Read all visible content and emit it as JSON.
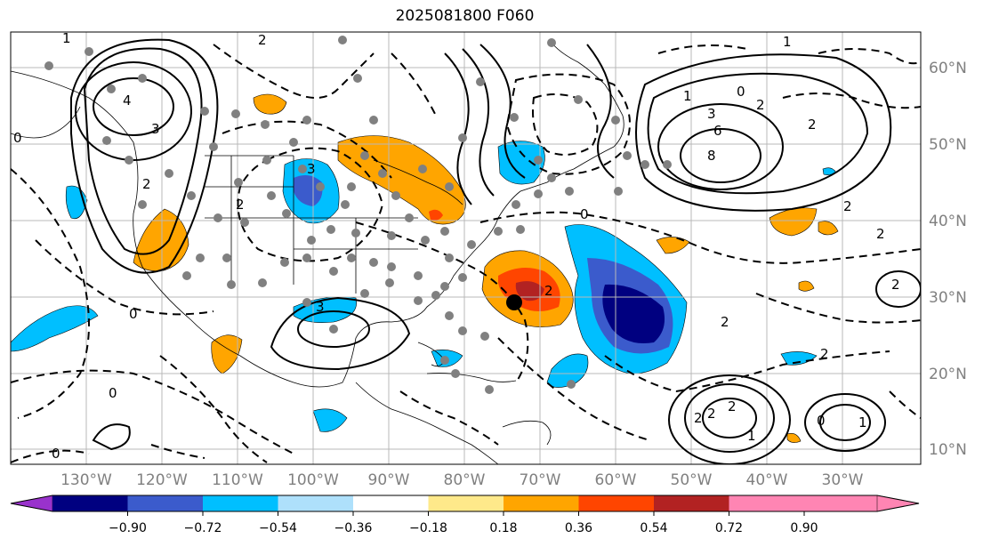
{
  "title": "2025081800 F060",
  "lon_labels": [
    "130°W",
    "120°W",
    "110°W",
    "100°W",
    "90°W",
    "80°W",
    "70°W",
    "60°W",
    "50°W",
    "40°W",
    "30°W"
  ],
  "lat_labels": [
    "60°N",
    "50°N",
    "40°N",
    "30°N",
    "20°N",
    "10°N"
  ],
  "colorbar": {
    "colors": [
      "#9932cc",
      "#000080",
      "#3b5bcc",
      "#00bfff",
      "#aee0fb",
      "#ffffff",
      "#fee98a",
      "#ffa500",
      "#ff4500",
      "#b22222",
      "#ff85b3"
    ],
    "ticks": [
      "−0.90",
      "−0.72",
      "−0.54",
      "−0.36",
      "−0.18",
      "0.18",
      "0.36",
      "0.54",
      "0.72",
      "0.90"
    ]
  },
  "contour_labels": [
    "1",
    "2",
    "3",
    "4",
    "0",
    "2",
    "3",
    "1",
    "2",
    "0",
    "1",
    "3",
    "6",
    "8",
    "2",
    "0",
    "2",
    "2",
    "2",
    "0",
    "2",
    "2",
    "0",
    "3",
    "0",
    "2",
    "1",
    "2",
    "2",
    "2",
    "1",
    "0",
    "2"
  ]
}
